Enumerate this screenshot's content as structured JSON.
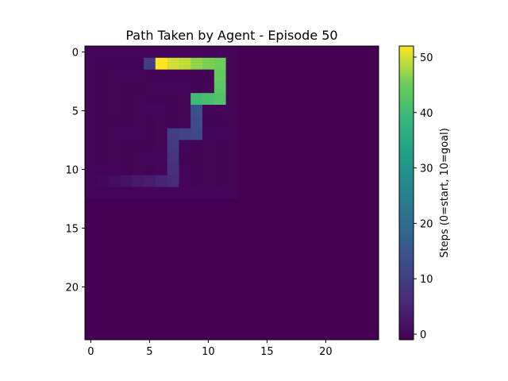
{
  "chart_data": {
    "type": "heatmap",
    "title": "Path Taken by Agent - Episode 50",
    "xlabel": "",
    "ylabel": "",
    "grid_size": [
      25,
      25
    ],
    "x_ticks": [
      0,
      5,
      10,
      15,
      20
    ],
    "y_ticks": [
      0,
      5,
      10,
      15,
      20
    ],
    "colormap": "viridis",
    "colorbar": {
      "label": "Steps (0=start, 10=goal)",
      "range": [
        -1,
        52
      ],
      "ticks": [
        0,
        10,
        20,
        30,
        40,
        50
      ]
    },
    "background_value": -1,
    "maze_region": {
      "rows": [
        0,
        12
      ],
      "cols": [
        0,
        12
      ],
      "open_value": -0.35,
      "wall_value": -0.55
    },
    "maze_walls": [
      [
        1,
        1
      ],
      [
        1,
        2
      ],
      [
        1,
        3
      ],
      [
        1,
        4
      ],
      [
        2,
        1
      ],
      [
        2,
        5
      ],
      [
        2,
        6
      ],
      [
        2,
        7
      ],
      [
        2,
        8
      ],
      [
        2,
        9
      ],
      [
        2,
        10
      ],
      [
        3,
        1
      ],
      [
        3,
        3
      ],
      [
        3,
        4
      ],
      [
        3,
        9
      ],
      [
        4,
        1
      ],
      [
        4,
        3
      ],
      [
        4,
        5
      ],
      [
        4,
        6
      ],
      [
        4,
        7
      ],
      [
        4,
        9
      ],
      [
        4,
        10
      ],
      [
        5,
        1
      ],
      [
        5,
        3
      ],
      [
        5,
        7
      ],
      [
        6,
        1
      ],
      [
        6,
        2
      ],
      [
        6,
        3
      ],
      [
        6,
        5
      ],
      [
        6,
        7
      ],
      [
        6,
        9
      ],
      [
        6,
        10
      ],
      [
        6,
        11
      ],
      [
        7,
        1
      ],
      [
        7,
        5
      ],
      [
        7,
        9
      ],
      [
        8,
        1
      ],
      [
        8,
        3
      ],
      [
        8,
        4
      ],
      [
        8,
        5
      ],
      [
        8,
        7
      ],
      [
        8,
        9
      ],
      [
        8,
        11
      ],
      [
        9,
        1
      ],
      [
        9,
        3
      ],
      [
        9,
        7
      ],
      [
        9,
        8
      ],
      [
        9,
        9
      ],
      [
        9,
        11
      ],
      [
        10,
        3
      ],
      [
        10,
        5
      ],
      [
        10,
        9
      ],
      [
        10,
        11
      ],
      [
        11,
        9
      ],
      [
        11,
        11
      ]
    ],
    "path": [
      [
        11,
        1,
        0
      ],
      [
        11,
        2,
        1
      ],
      [
        11,
        3,
        2
      ],
      [
        11,
        4,
        3
      ],
      [
        11,
        5,
        4
      ],
      [
        11,
        6,
        5
      ],
      [
        11,
        7,
        6
      ],
      [
        10,
        7,
        7
      ],
      [
        9,
        7,
        8
      ],
      [
        8,
        7,
        9
      ],
      [
        7,
        7,
        10
      ],
      [
        7,
        8,
        11
      ],
      [
        7,
        9,
        12
      ],
      [
        6,
        9,
        13
      ],
      [
        5,
        9,
        14
      ],
      [
        4,
        9,
        40
      ],
      [
        4,
        10,
        41
      ],
      [
        4,
        11,
        42
      ],
      [
        3,
        11,
        43
      ],
      [
        2,
        11,
        44
      ],
      [
        1,
        11,
        45
      ],
      [
        1,
        10,
        46
      ],
      [
        1,
        9,
        47
      ],
      [
        1,
        8,
        49
      ],
      [
        1,
        7,
        50
      ],
      [
        1,
        6,
        52
      ],
      [
        1,
        5,
        10
      ]
    ]
  }
}
